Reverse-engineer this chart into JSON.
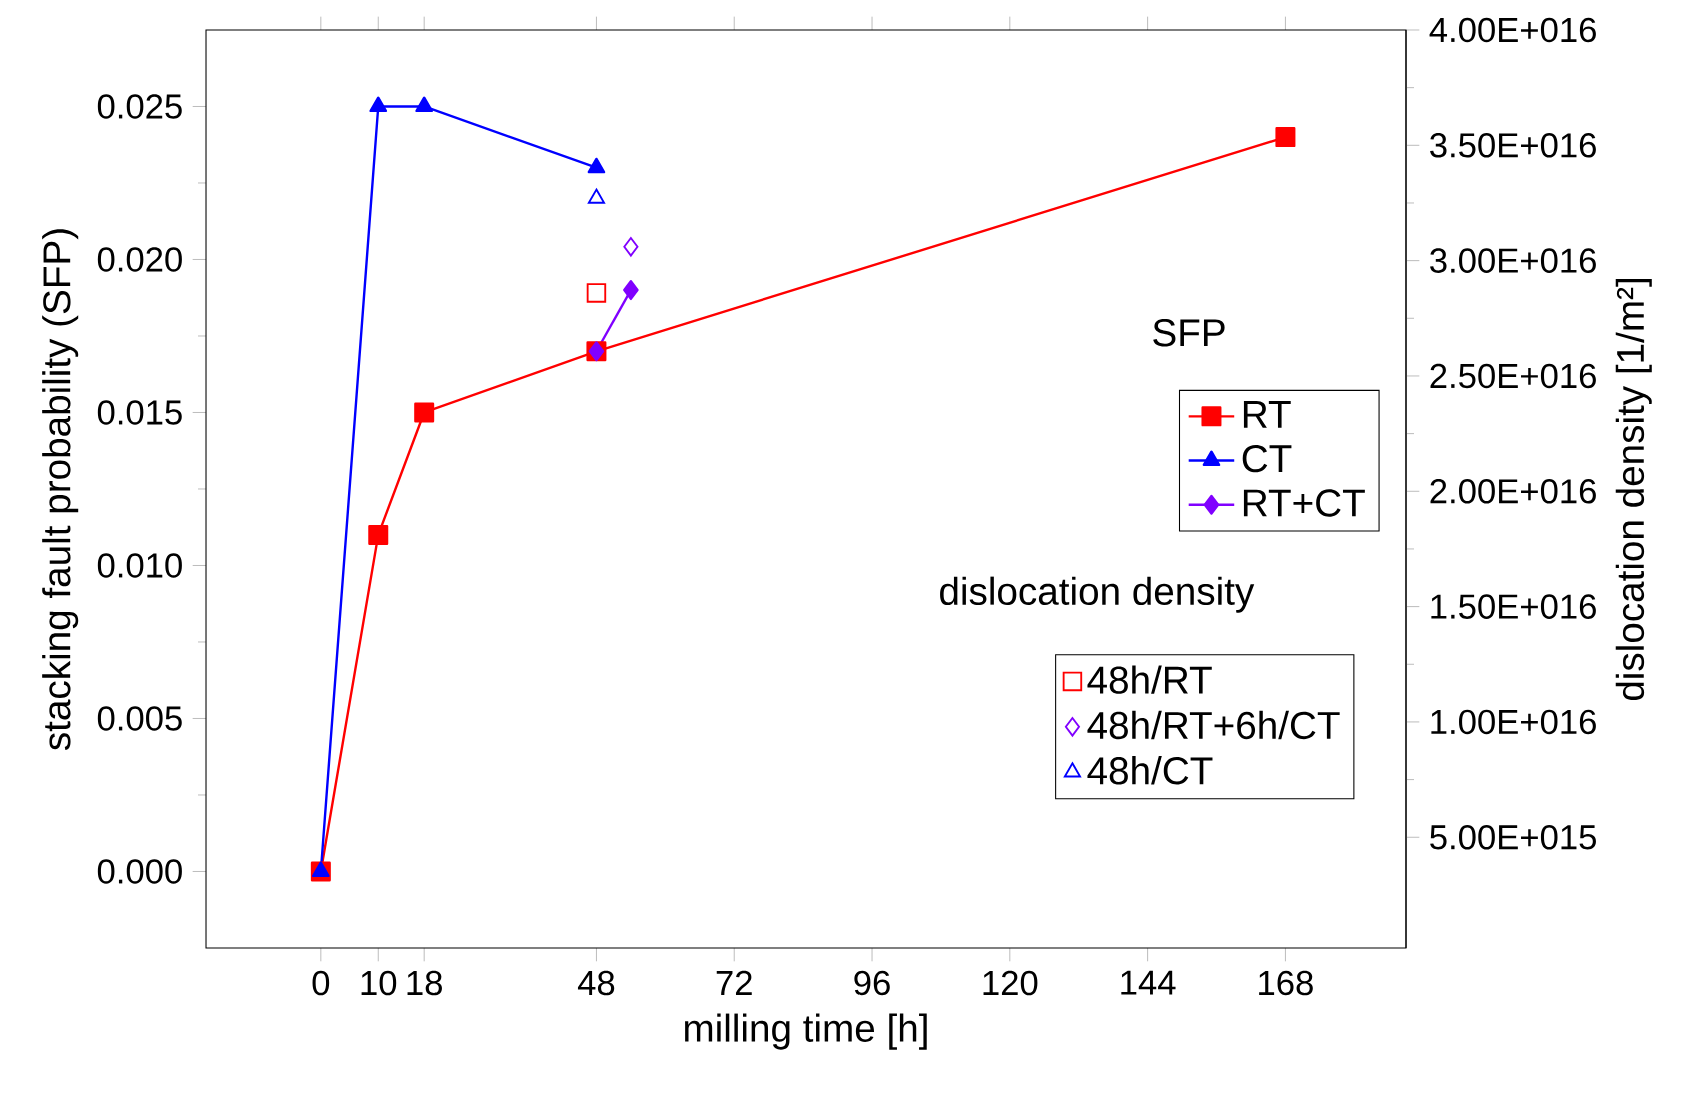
{
  "chart_data": {
    "type": "line",
    "xlabel": "milling time [h]",
    "ylabel": "stacking fault probability (SFP)",
    "y2label": "dislocation density [1/m²]",
    "legend_title": "SFP",
    "annotations": [
      "dislocation density"
    ],
    "legend": "right",
    "xlim": [
      -20,
      189
    ],
    "xticks": [
      0,
      10,
      18,
      48,
      72,
      96,
      120,
      144,
      168
    ],
    "ylim": [
      -0.0025,
      0.0275
    ],
    "yticks": [
      {
        "value": 0,
        "label": "0.000"
      },
      {
        "value": 0.005,
        "label": "0.005"
      },
      {
        "value": 0.01,
        "label": "0.010"
      },
      {
        "value": 0.015,
        "label": "0.015"
      },
      {
        "value": 0.02,
        "label": "0.020"
      },
      {
        "value": 0.025,
        "label": "0.025"
      }
    ],
    "y2lim": [
      200000000000000.0,
      4e+16
    ],
    "y2ticks": [
      {
        "value": 5000000000000000.0,
        "label": "5.00E+015"
      },
      {
        "value": 1e+16,
        "label": "1.00E+016"
      },
      {
        "value": 1.5e+16,
        "label": "1.50E+016"
      },
      {
        "value": 2e+16,
        "label": "2.00E+016"
      },
      {
        "value": 2.5e+16,
        "label": "2.50E+016"
      },
      {
        "value": 3e+16,
        "label": "3.00E+016"
      },
      {
        "value": 3.5e+16,
        "label": "3.50E+016"
      },
      {
        "value": 4e+16,
        "label": "4.00E+016"
      }
    ],
    "series": [
      {
        "name": "RT",
        "color": "#ff0000",
        "marker": "square",
        "x": [
          0,
          10,
          18,
          48,
          168
        ],
        "values": [
          0,
          0.011,
          0.015,
          0.017,
          0.024
        ]
      },
      {
        "name": "CT",
        "color": "#0000ff",
        "marker": "triangle",
        "x": [
          0,
          10,
          18,
          48
        ],
        "values": [
          0,
          0.025,
          0.025,
          0.023
        ]
      },
      {
        "name": "RT+CT",
        "color": "#8000ff",
        "marker": "diamond",
        "x": [
          48,
          54
        ],
        "values": [
          0.017,
          0.019
        ]
      },
      {
        "name": "48h/RT",
        "type": "scatter",
        "axis": "y2",
        "color": "#ff0000",
        "marker": "square",
        "x": [
          48
        ],
        "values": [
          2.86e+16
        ]
      },
      {
        "name": "48h/RT+6h/CT",
        "type": "scatter",
        "axis": "y2",
        "color": "#8000ff",
        "marker": "diamond",
        "x": [
          54
        ],
        "values": [
          3.06e+16
        ]
      },
      {
        "name": "48h/CT",
        "type": "scatter",
        "axis": "y2",
        "color": "#0000ff",
        "marker": "triangle",
        "x": [
          48
        ],
        "values": [
          3.27e+16
        ]
      }
    ]
  }
}
